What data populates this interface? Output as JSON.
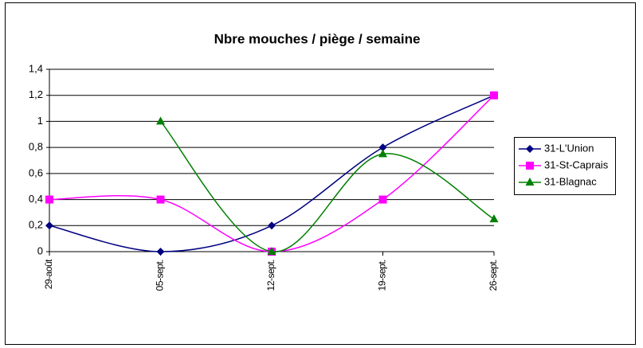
{
  "chart_data": {
    "type": "line",
    "title": "Nbre mouches / piège / semaine",
    "categories": [
      "29-août",
      "05-sept.",
      "12-sept.",
      "19-sept.",
      "26-sept."
    ],
    "series": [
      {
        "name": "31-L'Union",
        "color": "#000080",
        "marker": "diamond",
        "values": [
          0.2,
          0,
          0.2,
          0.8,
          1.2
        ]
      },
      {
        "name": "31-St-Caprais",
        "color": "#ff00ff",
        "marker": "square",
        "values": [
          0.4,
          0.4,
          0,
          0.4,
          1.2
        ]
      },
      {
        "name": "31-Blagnac",
        "color": "#008000",
        "marker": "triangle",
        "values": [
          null,
          1,
          0,
          0.75,
          0.25
        ]
      }
    ],
    "ylim": [
      0,
      1.4
    ],
    "yticks": [
      0,
      {
        "value": 0.2,
        "label": "0,2"
      },
      {
        "value": 0.4,
        "label": "0,4"
      },
      {
        "value": 0.6,
        "label": "0,6"
      },
      {
        "value": 0.8,
        "label": "0,8"
      },
      1,
      {
        "value": 1.2,
        "label": "1,2"
      },
      {
        "value": 1.4,
        "label": "1,4"
      }
    ],
    "grid": true,
    "smooth": true,
    "legend": "right"
  }
}
